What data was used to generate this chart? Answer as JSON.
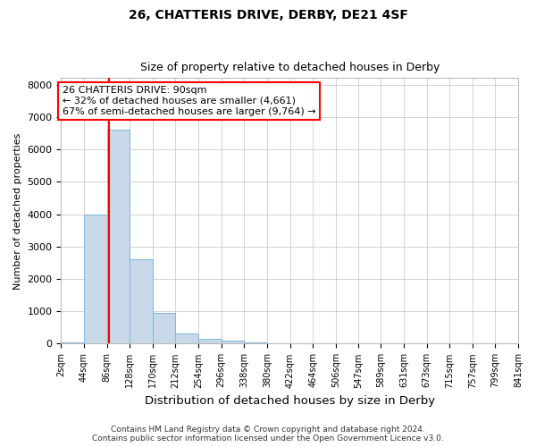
{
  "title1": "26, CHATTERIS DRIVE, DERBY, DE21 4SF",
  "title2": "Size of property relative to detached houses in Derby",
  "xlabel": "Distribution of detached houses by size in Derby",
  "ylabel": "Number of detached properties",
  "bin_edges": [
    2,
    44,
    86,
    128,
    170,
    212,
    254,
    296,
    338,
    380,
    422,
    464,
    506,
    547,
    589,
    631,
    673,
    715,
    757,
    799,
    841
  ],
  "bar_heights": [
    50,
    3980,
    6620,
    2600,
    960,
    320,
    140,
    90,
    50,
    25,
    15,
    8,
    5,
    4,
    3,
    2,
    1,
    1,
    1,
    0
  ],
  "bar_color": "#c8d8e8",
  "bar_edgecolor": "#7fb8d8",
  "property_size": 90,
  "vline_color": "red",
  "annotation_text": "26 CHATTERIS DRIVE: 90sqm\n← 32% of detached houses are smaller (4,661)\n67% of semi-detached houses are larger (9,764) →",
  "annotation_box_color": "white",
  "annotation_box_edgecolor": "red",
  "ylim": [
    0,
    8200
  ],
  "yticks": [
    0,
    1000,
    2000,
    3000,
    4000,
    5000,
    6000,
    7000,
    8000
  ],
  "footer_text": "Contains HM Land Registry data © Crown copyright and database right 2024.\nContains public sector information licensed under the Open Government Licence v3.0.",
  "background_color": "white",
  "grid_color": "#cccccc"
}
